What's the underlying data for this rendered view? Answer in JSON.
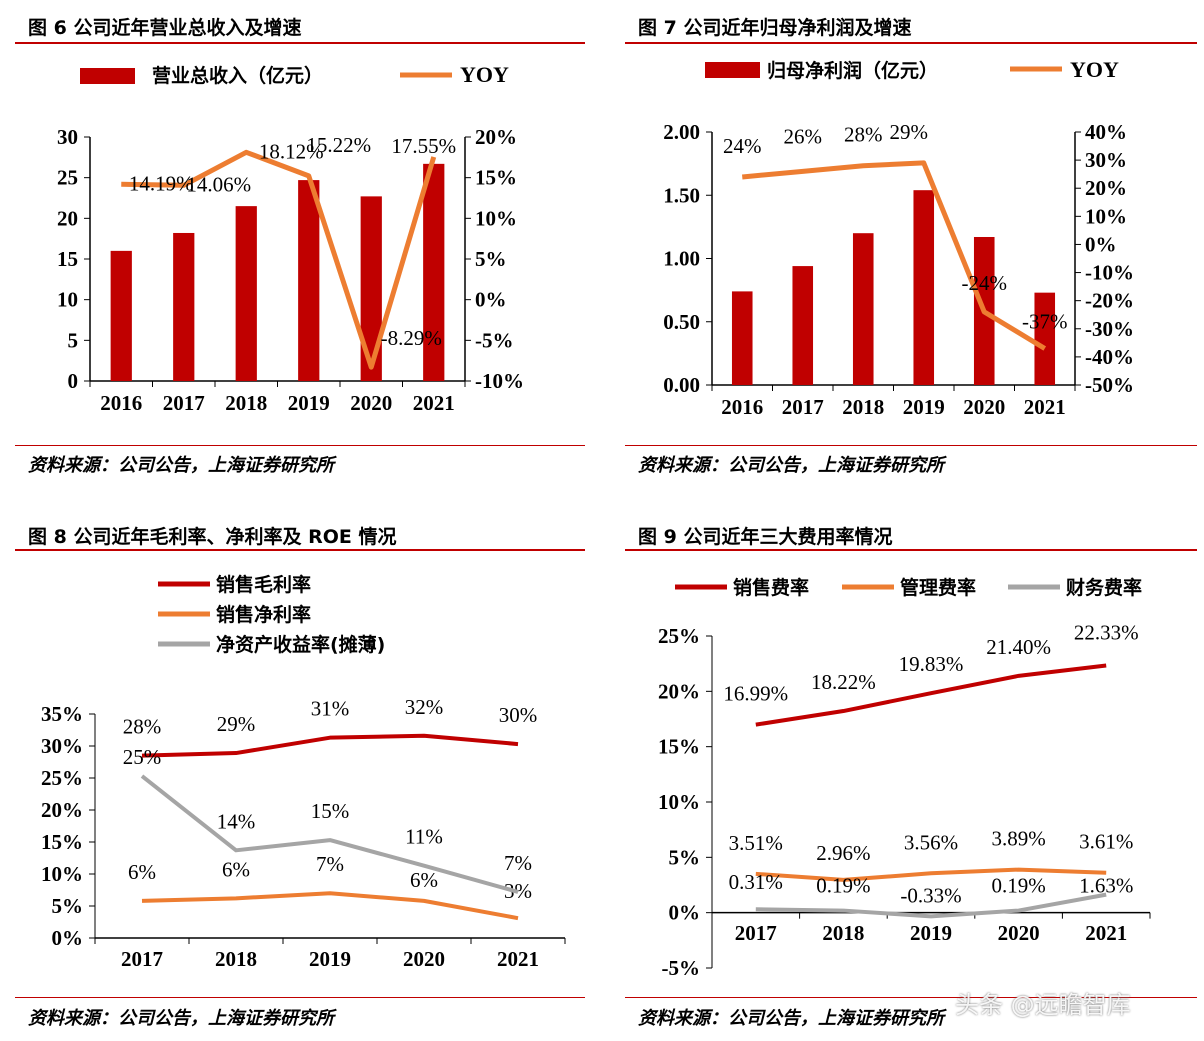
{
  "panels": [
    {
      "title": "图 6 公司近年营业总收入及增速",
      "source": "资料来源：公司公告，上海证券研究所"
    },
    {
      "title": "图 7 公司近年归母净利润及增速",
      "source": "资料来源：公司公告，上海证券研究所"
    },
    {
      "title": "图 8 公司近年毛利率、净利率及 ROE 情况",
      "source": "资料来源：公司公告，上海证券研究所"
    },
    {
      "title": "图 9 公司近年三大费用率情况",
      "source": "资料来源：公司公告，上海证券研究所"
    }
  ],
  "watermark": "头条 @远瞻智库",
  "colors": {
    "bar": "#c00000",
    "orange": "#ed7d31",
    "darkred": "#c00000",
    "gray": "#a5a5a5",
    "rule": "#c00000"
  },
  "chart_data": [
    {
      "type": "bar+line",
      "categories": [
        "2016",
        "2017",
        "2018",
        "2019",
        "2020",
        "2021"
      ],
      "series": [
        {
          "name": "营业总收入（亿元）",
          "type": "bar",
          "axis": "left",
          "values": [
            16.0,
            18.2,
            21.5,
            24.7,
            22.7,
            26.7
          ]
        },
        {
          "name": "YOY",
          "type": "line",
          "axis": "right",
          "values": [
            14.19,
            14.06,
            18.12,
            15.22,
            -8.29,
            17.55
          ],
          "labels": [
            "14.19%",
            "14.06%",
            "18.12%",
            "15.22%",
            "-8.29%",
            "17.55%"
          ]
        }
      ],
      "ylim": [
        0,
        30
      ],
      "yticks": [
        "0",
        "5",
        "10",
        "15",
        "20",
        "25",
        "30"
      ],
      "y2lim": [
        -10,
        20
      ],
      "y2ticks": [
        "-10%",
        "-5%",
        "0%",
        "5%",
        "10%",
        "15%",
        "20%"
      ],
      "legend": "top"
    },
    {
      "type": "bar+line",
      "categories": [
        "2016",
        "2017",
        "2018",
        "2019",
        "2020",
        "2021"
      ],
      "series": [
        {
          "name": "归母净利润（亿元）",
          "type": "bar",
          "axis": "left",
          "values": [
            0.74,
            0.94,
            1.2,
            1.54,
            1.17,
            0.73
          ]
        },
        {
          "name": "YOY",
          "type": "line",
          "axis": "right",
          "values": [
            24,
            26,
            28,
            29,
            -24,
            -37
          ],
          "labels": [
            "24%",
            "26%",
            "28%",
            "29%",
            "-24%",
            "-37%"
          ]
        }
      ],
      "ylim": [
        0,
        2
      ],
      "yticks": [
        "0.00",
        "0.50",
        "1.00",
        "1.50",
        "2.00"
      ],
      "y2lim": [
        -50,
        40
      ],
      "y2ticks": [
        "-50%",
        "-40%",
        "-30%",
        "-20%",
        "-10%",
        "0%",
        "10%",
        "20%",
        "30%",
        "40%"
      ],
      "legend": "top"
    },
    {
      "type": "line",
      "categories": [
        "2017",
        "2018",
        "2019",
        "2020",
        "2021"
      ],
      "series": [
        {
          "name": "销售毛利率",
          "values": [
            28.5,
            28.9,
            31.3,
            31.6,
            30.3
          ],
          "labels": [
            "28%",
            "29%",
            "31%",
            "32%",
            "30%"
          ]
        },
        {
          "name": "销售净利率",
          "values": [
            5.8,
            6.2,
            7.0,
            5.8,
            3.1
          ],
          "labels": [
            "6%",
            "6%",
            "7%",
            "6%",
            "3%"
          ]
        },
        {
          "name": "净资产收益率(摊薄)",
          "values": [
            25.3,
            13.7,
            15.3,
            11.3,
            7.2
          ],
          "labels": [
            "25%",
            "14%",
            "15%",
            "11%",
            "7%"
          ]
        }
      ],
      "ylim": [
        0,
        35
      ],
      "yticks": [
        "0%",
        "5%",
        "10%",
        "15%",
        "20%",
        "25%",
        "30%",
        "35%"
      ],
      "legend": "top-left"
    },
    {
      "type": "line",
      "categories": [
        "2017",
        "2018",
        "2019",
        "2020",
        "2021"
      ],
      "series": [
        {
          "name": "销售费率",
          "values": [
            16.99,
            18.22,
            19.83,
            21.4,
            22.33
          ],
          "labels": [
            "16.99%",
            "18.22%",
            "19.83%",
            "21.40%",
            "22.33%"
          ]
        },
        {
          "name": "管理费率",
          "values": [
            3.51,
            2.96,
            3.56,
            3.89,
            3.61
          ],
          "labels": [
            "3.51%",
            "2.96%",
            "3.56%",
            "3.89%",
            "3.61%"
          ]
        },
        {
          "name": "财务费率",
          "values": [
            0.31,
            0.19,
            -0.33,
            0.19,
            1.63
          ],
          "labels": [
            "0.31%",
            "0.19%",
            "-0.33%",
            "0.19%",
            "1.63%"
          ]
        }
      ],
      "ylim": [
        -5,
        25
      ],
      "yticks": [
        "-5%",
        "0%",
        "5%",
        "10%",
        "15%",
        "20%",
        "25%"
      ],
      "legend": "top"
    }
  ]
}
